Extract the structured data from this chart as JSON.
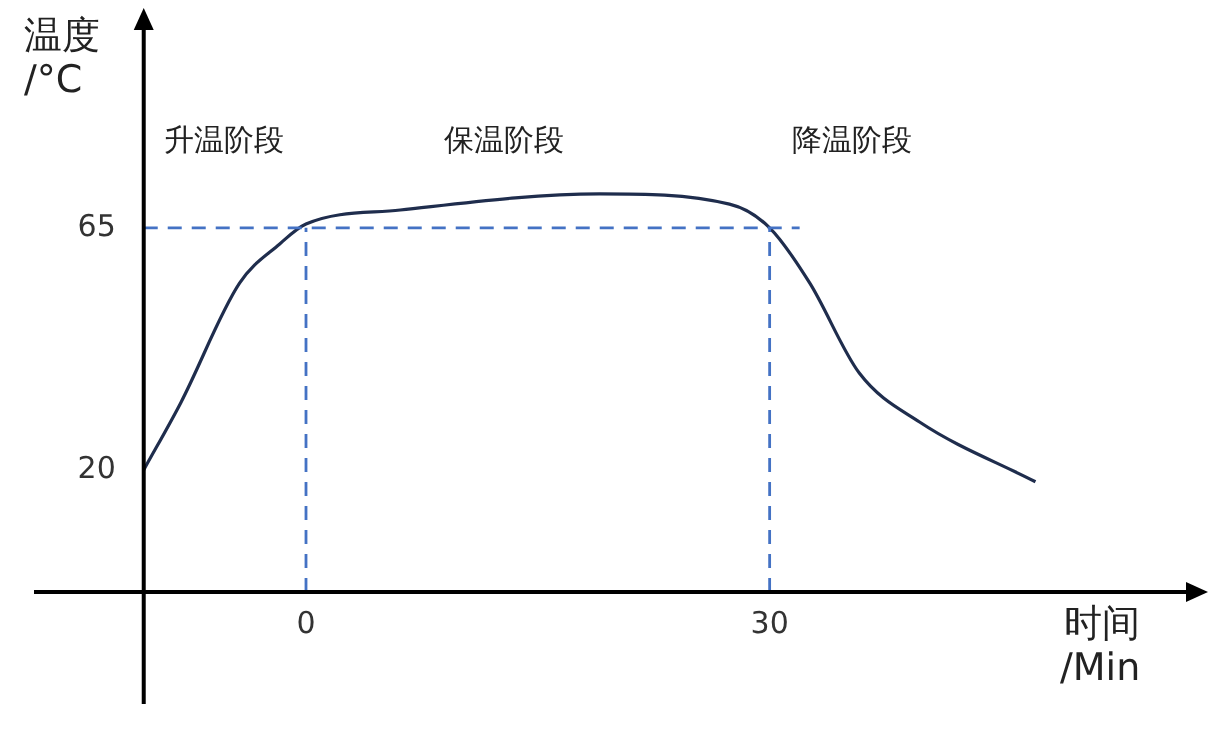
{
  "chart_data": {
    "type": "line",
    "xlabel": "时间\n/Min",
    "ylabel": "温度\n/°C",
    "annotations": [
      "升温阶段",
      "保温阶段",
      "降温阶段"
    ],
    "x": [
      -10.5,
      -8.1,
      -4.3,
      -1.7,
      0,
      6.1,
      19,
      27.4,
      30,
      32.6,
      35.8,
      39.7,
      47.2
    ],
    "series": [
      {
        "color": "#1f2d4d",
        "values": [
          20,
          32.5,
          54.7,
          62,
          65.7,
          68.3,
          71.3,
          69.4,
          65,
          54.7,
          38,
          28.9,
          17.8
        ]
      }
    ],
    "xlim": [
      -17.6,
      57.2
    ],
    "ylim": [
      -23.5,
      102.5
    ],
    "xticks": [
      0,
      30
    ],
    "yticks": [
      20,
      65
    ],
    "ref_lines": [
      {
        "axis": "y",
        "value": 65,
        "color": "#4472c4",
        "line_style": "dashed"
      },
      {
        "axis": "x",
        "value": 0,
        "color": "#4472c4",
        "line_style": "dashed"
      },
      {
        "axis": "x",
        "value": 30,
        "color": "#4472c4",
        "line_style": "dashed"
      }
    ],
    "legend": false,
    "marker": "none",
    "line_style": "solid"
  }
}
